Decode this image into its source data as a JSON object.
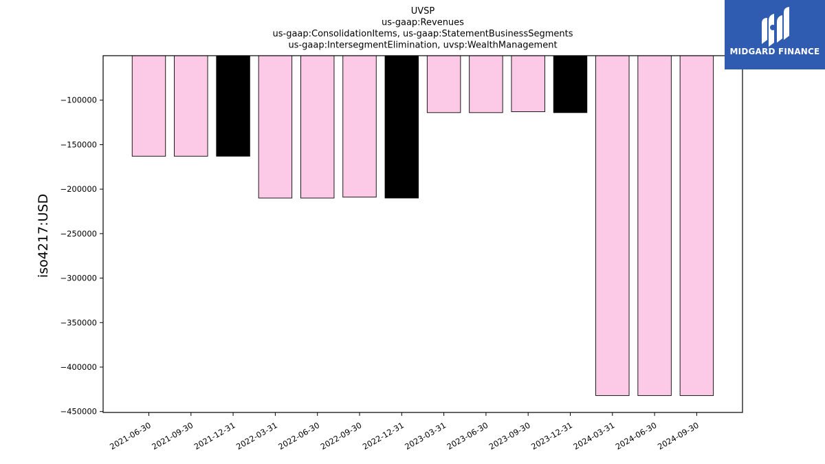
{
  "chart_data": {
    "type": "bar",
    "title_lines": [
      "UVSP",
      "us-gaap:Revenues",
      "us-gaap:ConsolidationItems, us-gaap:StatementBusinessSegments",
      "us-gaap:IntersegmentElimination, uvsp:WealthManagement"
    ],
    "xlabel": "",
    "ylabel": "iso4217:USD",
    "categories": [
      "2021-06-30",
      "2021-09-30",
      "2021-12-31",
      "2022-03-31",
      "2022-06-30",
      "2022-09-30",
      "2022-12-31",
      "2023-03-31",
      "2023-06-30",
      "2023-09-30",
      "2023-12-31",
      "2024-03-31",
      "2024-06-30",
      "2024-09-30"
    ],
    "values": [
      -163000,
      -163000,
      -163000,
      -210000,
      -210000,
      -209000,
      -210000,
      -114000,
      -114000,
      -113000,
      -114000,
      -432000,
      -432000,
      -432000
    ],
    "bar_colors": [
      "#fccae6",
      "#fccae6",
      "#000000",
      "#fccae6",
      "#fccae6",
      "#fccae6",
      "#000000",
      "#fccae6",
      "#fccae6",
      "#fccae6",
      "#000000",
      "#fccae6",
      "#fccae6",
      "#fccae6"
    ],
    "ylim": [
      -451000,
      -50000
    ],
    "yticks": [
      -100000,
      -150000,
      -200000,
      -250000,
      -300000,
      -350000,
      -400000,
      -450000
    ],
    "ytick_labels": [
      "−100000",
      "−150000",
      "−200000",
      "−250000",
      "−300000",
      "−350000",
      "−400000",
      "−450000"
    ],
    "grid": false
  },
  "logo": {
    "text": "MIDGARD FINANCE",
    "background": "#2f5bb0"
  }
}
